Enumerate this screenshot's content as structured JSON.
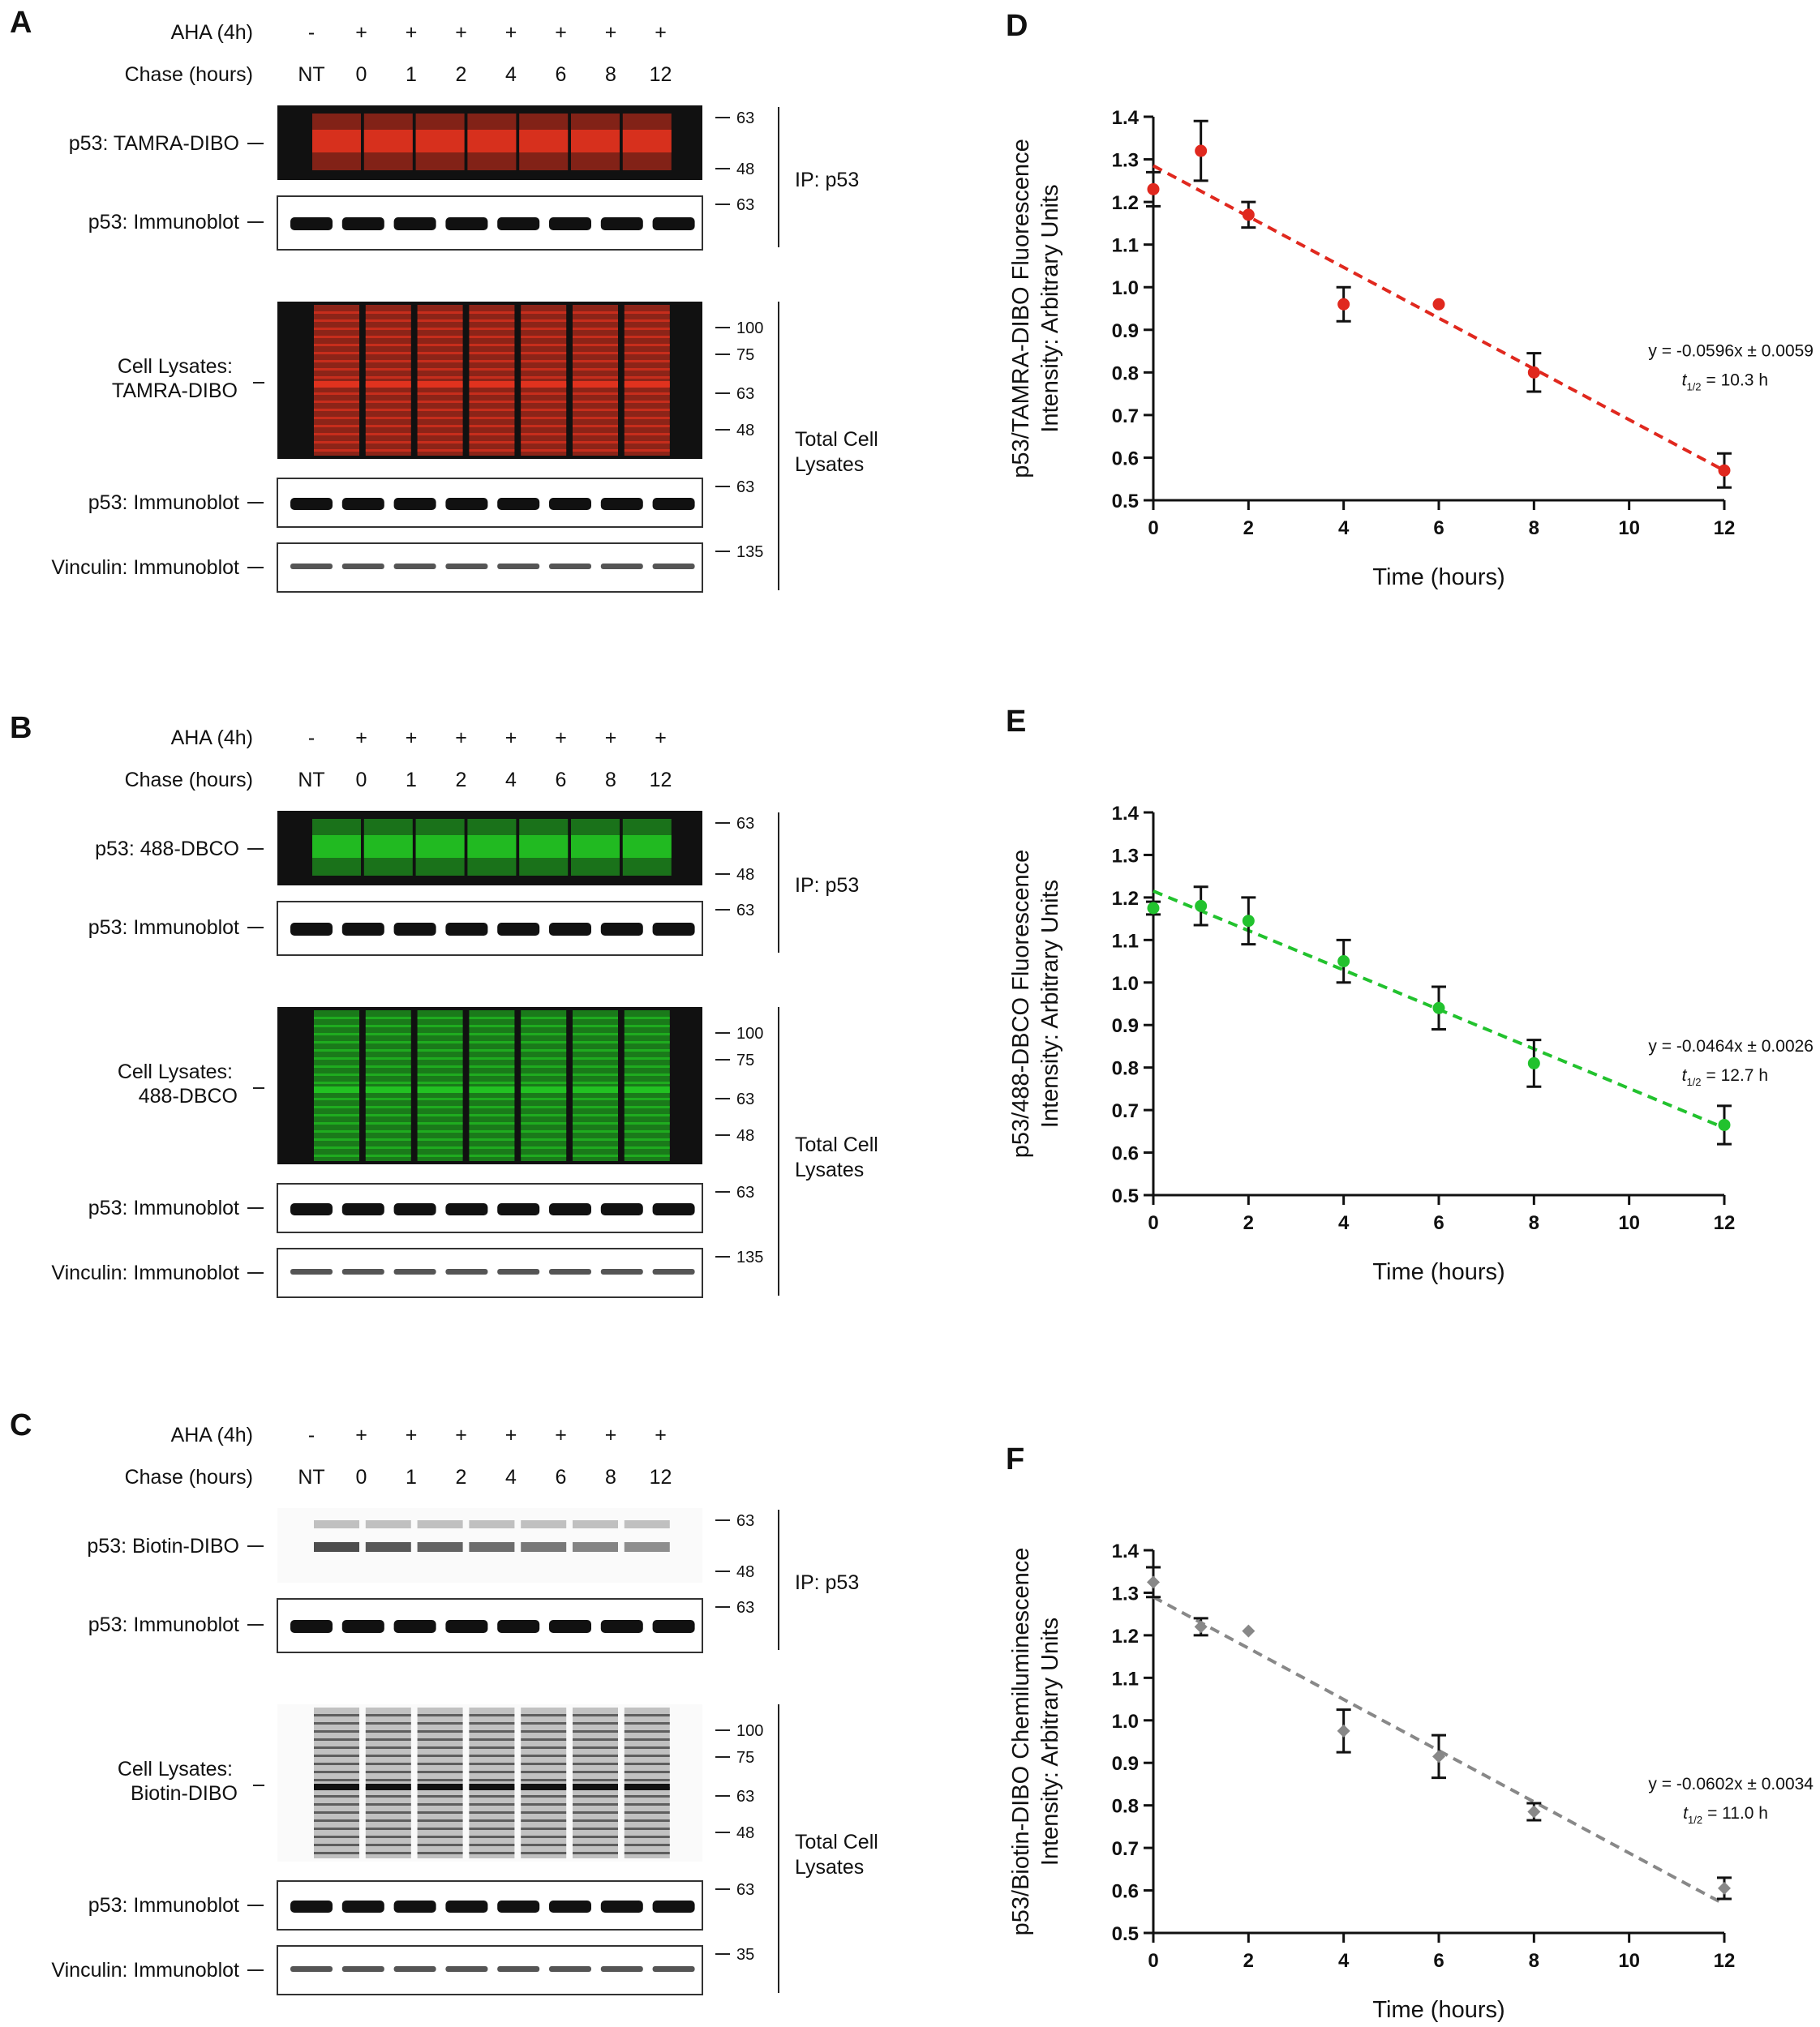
{
  "blots": [
    {
      "letter": "A",
      "treatment_label": "AHA (4h)",
      "treatment_values": [
        "-",
        "+",
        "+",
        "+",
        "+",
        "+",
        "+",
        "+"
      ],
      "chase_label": "Chase (hours)",
      "chase_values": [
        "NT",
        "0",
        "1",
        "2",
        "4",
        "6",
        "8",
        "12"
      ],
      "color": "#e0321e",
      "probe_label": "p53: TAMRA-DIBO",
      "ip_immunoblot_label": "p53: Immunoblot",
      "lysate_label_line1": "Cell Lysates:",
      "lysate_label_line2": "TAMRA-DIBO",
      "lysate_immunoblot_label": "p53: Immunoblot",
      "vinculin_label": "Vinculin: Immunoblot",
      "ip_group": "IP: p53",
      "total_group_line1": "Total Cell",
      "total_group_line2": "Lysates",
      "markers_probe": [
        "63",
        "48"
      ],
      "markers_ip_blot": [
        "63"
      ],
      "markers_lysate": [
        "100",
        "75",
        "63",
        "48"
      ],
      "markers_lysate_blot": [
        "63"
      ],
      "markers_vinculin": [
        "135"
      ]
    },
    {
      "letter": "B",
      "treatment_label": "AHA (4h)",
      "treatment_values": [
        "-",
        "+",
        "+",
        "+",
        "+",
        "+",
        "+",
        "+"
      ],
      "chase_label": "Chase (hours)",
      "chase_values": [
        "NT",
        "0",
        "1",
        "2",
        "4",
        "6",
        "8",
        "12"
      ],
      "color": "#22c222",
      "probe_label": "p53: 488-DBCO",
      "ip_immunoblot_label": "p53: Immunoblot",
      "lysate_label_line1": "Cell Lysates:",
      "lysate_label_line2": "488-DBCO",
      "lysate_immunoblot_label": "p53: Immunoblot",
      "vinculin_label": "Vinculin: Immunoblot",
      "ip_group": "IP: p53",
      "total_group_line1": "Total Cell",
      "total_group_line2": "Lysates",
      "markers_probe": [
        "63",
        "48"
      ],
      "markers_ip_blot": [
        "63"
      ],
      "markers_lysate": [
        "100",
        "75",
        "63",
        "48"
      ],
      "markers_lysate_blot": [
        "63"
      ],
      "markers_vinculin": [
        "135"
      ]
    },
    {
      "letter": "C",
      "treatment_label": "AHA (4h)",
      "treatment_values": [
        "-",
        "+",
        "+",
        "+",
        "+",
        "+",
        "+",
        "+"
      ],
      "chase_label": "Chase (hours)",
      "chase_values": [
        "NT",
        "0",
        "1",
        "2",
        "4",
        "6",
        "8",
        "12"
      ],
      "color": "#222222",
      "probe_label": "p53: Biotin-DIBO",
      "ip_immunoblot_label": "p53: Immunoblot",
      "lysate_label_line1": "Cell Lysates:",
      "lysate_label_line2": "Biotin-DIBO",
      "lysate_immunoblot_label": "p53: Immunoblot",
      "vinculin_label": "Vinculin: Immunoblot",
      "ip_group": "IP: p53",
      "total_group_line1": "Total Cell",
      "total_group_line2": "Lysates",
      "markers_probe": [
        "63",
        "48"
      ],
      "markers_ip_blot": [
        "63"
      ],
      "markers_lysate": [
        "100",
        "75",
        "63",
        "48"
      ],
      "markers_lysate_blot": [
        "63"
      ],
      "markers_vinculin": [
        "35"
      ]
    }
  ],
  "chart_data": [
    {
      "panel": "D",
      "type": "scatter",
      "xlabel": "Time (hours)",
      "ylabel_line1": "p53/TAMRA-DIBO Fluorescence",
      "ylabel_line2": "Intensity: Arbitrary Units",
      "xlim": [
        0,
        12
      ],
      "ylim": [
        0.5,
        1.4
      ],
      "xticks": [
        "0",
        "2",
        "4",
        "6",
        "8",
        "10",
        "12"
      ],
      "yticks": [
        "0.5",
        "0.6",
        "0.7",
        "0.8",
        "0.9",
        "1.0",
        "1.1",
        "1.2",
        "1.3",
        "1.4"
      ],
      "marker": "circle",
      "color": "#e0281e",
      "points": [
        {
          "x": 0,
          "y": 1.23,
          "err": 0.04
        },
        {
          "x": 1,
          "y": 1.32,
          "err": 0.07
        },
        {
          "x": 2,
          "y": 1.17,
          "err": 0.03
        },
        {
          "x": 4,
          "y": 0.96,
          "err": 0.04
        },
        {
          "x": 6,
          "y": 0.96,
          "err": 0
        },
        {
          "x": 8,
          "y": 0.8,
          "err": 0.045
        },
        {
          "x": 12,
          "y": 0.57,
          "err": 0.04
        }
      ],
      "fit": {
        "slope": -0.0596,
        "intercept": 1.285
      },
      "equation": "y = -0.0596x ± 0.0059",
      "half_life": "= 10.3 h"
    },
    {
      "panel": "E",
      "type": "scatter",
      "xlabel": "Time (hours)",
      "ylabel_line1": "p53/488-DBCO Fluorescence",
      "ylabel_line2": "Intensity: Arbitrary Units",
      "xlim": [
        0,
        12
      ],
      "ylim": [
        0.5,
        1.4
      ],
      "xticks": [
        "0",
        "2",
        "4",
        "6",
        "8",
        "10",
        "12"
      ],
      "yticks": [
        "0.5",
        "0.6",
        "0.7",
        "0.8",
        "0.9",
        "1.0",
        "1.1",
        "1.2",
        "1.3",
        "1.4"
      ],
      "marker": "circle",
      "color": "#22c22e",
      "points": [
        {
          "x": 0,
          "y": 1.175,
          "err": 0.015
        },
        {
          "x": 1,
          "y": 1.18,
          "err": 0.045
        },
        {
          "x": 2,
          "y": 1.145,
          "err": 0.055
        },
        {
          "x": 4,
          "y": 1.05,
          "err": 0.05
        },
        {
          "x": 6,
          "y": 0.94,
          "err": 0.05
        },
        {
          "x": 8,
          "y": 0.81,
          "err": 0.055
        },
        {
          "x": 12,
          "y": 0.665,
          "err": 0.045
        }
      ],
      "fit": {
        "slope": -0.0464,
        "intercept": 1.215
      },
      "equation": "y = -0.0464x ± 0.0026",
      "half_life": "= 12.7 h"
    },
    {
      "panel": "F",
      "type": "scatter",
      "xlabel": "Time (hours)",
      "ylabel_line1": "p53/Biotin-DIBO Chemiluminescence",
      "ylabel_line2": "Intensity: Arbitrary Units",
      "xlim": [
        0,
        12
      ],
      "ylim": [
        0.5,
        1.4
      ],
      "xticks": [
        "0",
        "2",
        "4",
        "6",
        "8",
        "10",
        "12"
      ],
      "yticks": [
        "0.5",
        "0.6",
        "0.7",
        "0.8",
        "0.9",
        "1.0",
        "1.1",
        "1.2",
        "1.3",
        "1.4"
      ],
      "marker": "diamond",
      "color": "#888888",
      "points": [
        {
          "x": 0,
          "y": 1.325,
          "err": 0.035
        },
        {
          "x": 1,
          "y": 1.22,
          "err": 0.02
        },
        {
          "x": 2,
          "y": 1.21,
          "err": 0
        },
        {
          "x": 4,
          "y": 0.975,
          "err": 0.05
        },
        {
          "x": 6,
          "y": 0.915,
          "err": 0.05
        },
        {
          "x": 8,
          "y": 0.785,
          "err": 0.02
        },
        {
          "x": 12,
          "y": 0.605,
          "err": 0.025
        }
      ],
      "fit": {
        "slope": -0.0602,
        "intercept": 1.29
      },
      "equation": "y = -0.0602x ± 0.0034",
      "half_life": "= 11.0 h"
    }
  ]
}
